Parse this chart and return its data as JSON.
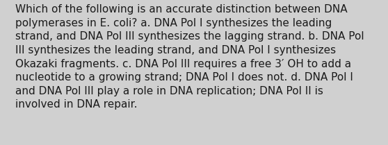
{
  "lines": [
    "Which of the following is an accurate distinction between DNA",
    "polymerases in E. coli? a. DNA Pol I synthesizes the leading",
    "strand, and DNA Pol III synthesizes the lagging strand. b. DNA Pol",
    "III synthesizes the leading strand, and DNA Pol I synthesizes",
    "Okazaki fragments. c. DNA Pol III requires a free 3′ OH to add a",
    "nucleotide to a growing strand; DNA Pol I does not. d. DNA Pol I",
    "and DNA Pol III play a role in DNA replication; DNA Pol II is",
    "involved in DNA repair."
  ],
  "background_color": "#d0d0d0",
  "text_color": "#1a1a1a",
  "font_size": 11.0,
  "fig_width": 5.58,
  "fig_height": 2.09
}
